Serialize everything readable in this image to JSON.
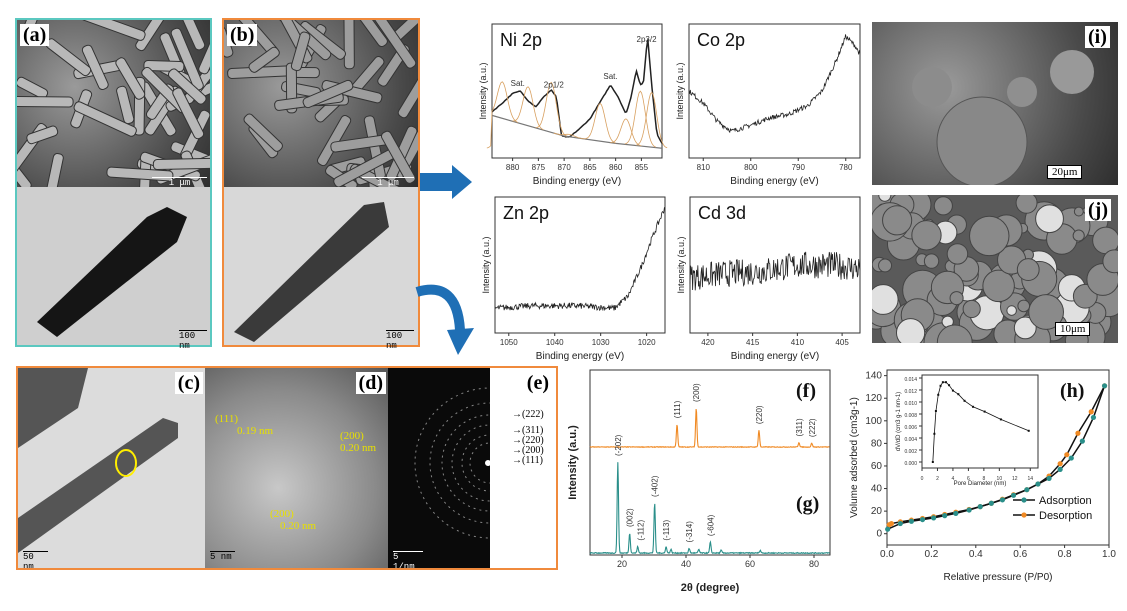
{
  "panels": {
    "a": {
      "label": "(a)",
      "scale_top": "1 μm",
      "scale_bottom": "100 nm",
      "border_color": "#5bc8c0"
    },
    "b": {
      "label": "(b)",
      "scale_top": "1 μm",
      "scale_bottom": "100 nm",
      "border_color": "#f08a3c"
    },
    "c": {
      "label": "(c)",
      "scale": "50 nm"
    },
    "d": {
      "label": "(d)",
      "scale": "5 nm",
      "annotations": [
        {
          "plane": "(111)",
          "spacing": "0.19 nm"
        },
        {
          "plane": "(200)",
          "spacing": "0.20 nm"
        },
        {
          "plane": "(200)",
          "spacing": "0.20 nm"
        }
      ]
    },
    "e": {
      "label": "(e)",
      "scale": "5 1/nm",
      "rings": [
        "(222)",
        "(311)",
        "(220)",
        "(200)",
        "(111)"
      ]
    },
    "i": {
      "label": "(i)",
      "scale": "20μm"
    },
    "j": {
      "label": "(j)",
      "scale": "10μm"
    },
    "cde_border_color": "#f08a3c",
    "arrow_color": "#1f6fb5"
  },
  "chart_data": [
    {
      "id": "ni2p",
      "type": "line",
      "title": "Ni 2p",
      "xlabel": "Binding energy (eV)",
      "ylabel": "Intensity (a.u.)",
      "xlim": [
        884,
        851
      ],
      "ylim": [
        0,
        1.1
      ],
      "xticks": [
        880,
        875,
        870,
        865,
        860,
        855
      ],
      "annotations": [
        {
          "text": "Sat.",
          "x": 879
        },
        {
          "text": "2p1/2",
          "x": 872
        },
        {
          "text": "Sat.",
          "x": 861
        },
        {
          "text": "2p3/2",
          "x": 854
        }
      ],
      "x": [
        884,
        882,
        880,
        878.5,
        877,
        875.5,
        874,
        872.5,
        871.5,
        870.5,
        869,
        867,
        865,
        863,
        861,
        859.5,
        858,
        857,
        856,
        855.2,
        854.6,
        853.8,
        853,
        852,
        851
      ],
      "y": [
        0.38,
        0.45,
        0.53,
        0.55,
        0.47,
        0.42,
        0.5,
        0.56,
        0.5,
        0.18,
        0.17,
        0.24,
        0.32,
        0.46,
        0.6,
        0.5,
        0.36,
        0.5,
        0.72,
        0.6,
        0.62,
        1.0,
        0.6,
        0.2,
        0.12
      ],
      "background": {
        "x": [
          884,
          870,
          860,
          851
        ],
        "y": [
          0.35,
          0.18,
          0.12,
          0.08
        ]
      }
    },
    {
      "id": "co2p",
      "type": "line",
      "title": "Co 2p",
      "xlabel": "Binding energy (eV)",
      "ylabel": "Intensity (a.u.)",
      "xlim": [
        813,
        777
      ],
      "ylim": [
        0,
        1.1
      ],
      "xticks": [
        810,
        800,
        790,
        780
      ],
      "x": [
        813,
        810,
        807,
        804,
        800,
        796,
        792,
        788,
        785,
        782,
        780,
        778,
        777
      ],
      "y": [
        0.55,
        0.45,
        0.3,
        0.22,
        0.27,
        0.33,
        0.36,
        0.43,
        0.55,
        0.8,
        1.0,
        0.92,
        0.85
      ]
    },
    {
      "id": "zn2p",
      "type": "line",
      "title": "Zn 2p",
      "xlabel": "Binding energy (eV)",
      "ylabel": "Intensity (a.u.)",
      "xlim": [
        1053,
        1016
      ],
      "ylim": [
        0,
        1.1
      ],
      "xticks": [
        1050,
        1040,
        1030,
        1020
      ],
      "x": [
        1053,
        1045,
        1035,
        1027,
        1024,
        1021,
        1019,
        1016
      ],
      "y": [
        0.2,
        0.22,
        0.22,
        0.2,
        0.3,
        0.55,
        0.75,
        1.02
      ]
    },
    {
      "id": "cd3d",
      "type": "line",
      "title": "Cd 3d",
      "xlabel": "Binding energy (eV)",
      "ylabel": "Intensity (a.u.)",
      "xlim": [
        422,
        403
      ],
      "ylim": [
        0,
        1.1
      ],
      "xticks": [
        420,
        415,
        410,
        405
      ],
      "x": [
        422,
        418,
        414,
        410,
        406,
        403
      ],
      "y": [
        0.45,
        0.48,
        0.5,
        0.55,
        0.55,
        0.52
      ]
    },
    {
      "id": "xrd",
      "type": "line",
      "xlabel": "2θ (degree)",
      "ylabel": "Intensity (a.u.)",
      "xlim": [
        10,
        85
      ],
      "xticks": [
        20,
        40,
        60,
        80
      ],
      "series": [
        {
          "label": "(f)",
          "color": "#f08a24",
          "peaks": [
            {
              "x": 37.2,
              "y": 0.35,
              "hkl": "(111)"
            },
            {
              "x": 43.2,
              "y": 0.6,
              "hkl": "(200)"
            },
            {
              "x": 62.8,
              "y": 0.26,
              "hkl": "(220)"
            },
            {
              "x": 75.3,
              "y": 0.07,
              "hkl": "(311)"
            },
            {
              "x": 79.3,
              "y": 0.06,
              "hkl": "(222)"
            }
          ]
        },
        {
          "label": "(g)",
          "color": "#2a8f8a",
          "peaks": [
            {
              "x": 18.7,
              "y": 1.0,
              "hkl": "(-202)"
            },
            {
              "x": 22.4,
              "y": 0.22,
              "hkl": "(002)"
            },
            {
              "x": 24.9,
              "y": 0.07,
              "hkl": "(-112)"
            },
            {
              "x": 30.2,
              "y": 0.55,
              "hkl": "(-402)"
            },
            {
              "x": 33.8,
              "y": 0.07,
              "hkl": "(-113)"
            },
            {
              "x": 35.3,
              "y": 0.04,
              "hkl": ""
            },
            {
              "x": 41.0,
              "y": 0.05,
              "hkl": "(-314)"
            },
            {
              "x": 44,
              "y": 0.04,
              "hkl": ""
            },
            {
              "x": 47.6,
              "y": 0.12,
              "hkl": "(-604)"
            },
            {
              "x": 51,
              "y": 0.03,
              "hkl": ""
            },
            {
              "x": 63.2,
              "y": 0.03,
              "hkl": ""
            }
          ]
        }
      ]
    },
    {
      "id": "bet",
      "type": "line",
      "label": "(h)",
      "xlabel": "Relative pressure (P/P0)",
      "ylabel": "Volume adsorbed (cm3g-1)",
      "xlim": [
        0,
        1.0
      ],
      "ylim": [
        -10,
        145
      ],
      "xticks": [
        0.0,
        0.2,
        0.4,
        0.6,
        0.8,
        1.0
      ],
      "yticks": [
        0,
        20,
        40,
        60,
        80,
        100,
        120,
        140
      ],
      "legend": "bottom-right",
      "series": [
        {
          "name": "Adsorption",
          "color": "#2a8f8a",
          "x": [
            0.003,
            0.06,
            0.11,
            0.16,
            0.21,
            0.26,
            0.31,
            0.37,
            0.42,
            0.47,
            0.52,
            0.57,
            0.63,
            0.68,
            0.73,
            0.78,
            0.83,
            0.88,
            0.93,
            0.98
          ],
          "y": [
            4,
            9,
            11,
            12.5,
            14,
            16,
            18,
            21,
            24,
            27,
            30,
            34,
            39,
            44,
            49,
            57,
            67,
            82,
            103,
            131
          ]
        },
        {
          "name": "Desorption",
          "color": "#f08a24",
          "x": [
            0.01,
            0.02,
            0.06,
            0.11,
            0.16,
            0.21,
            0.26,
            0.31,
            0.37,
            0.42,
            0.47,
            0.52,
            0.57,
            0.63,
            0.68,
            0.73,
            0.78,
            0.81,
            0.86,
            0.92,
            0.98
          ],
          "y": [
            8,
            9,
            10.5,
            12,
            13.5,
            15,
            17,
            19,
            21.5,
            24,
            27,
            30.5,
            34.5,
            39,
            44,
            51,
            62,
            70,
            89,
            108,
            131
          ]
        }
      ],
      "inset": {
        "xlabel": "Pore Diameter (nm)",
        "ylabel": "dV/dD (cm3 g-1 nm-1)",
        "xlim": [
          0,
          15
        ],
        "ylim": [
          -0.001,
          0.0145
        ],
        "xticks": [
          0,
          2,
          4,
          6,
          8,
          10,
          12,
          14
        ],
        "yticks": [
          0.0,
          0.002,
          0.004,
          0.006,
          0.008,
          0.01,
          0.012,
          0.014
        ],
        "x": [
          1.4,
          1.6,
          1.8,
          2.1,
          2.4,
          2.7,
          3.1,
          3.5,
          4.0,
          4.7,
          5.5,
          6.6,
          8.1,
          10.2,
          13.8
        ],
        "y": [
          0,
          0.0047,
          0.0085,
          0.0112,
          0.0127,
          0.0133,
          0.0133,
          0.0128,
          0.0119,
          0.0113,
          0.0102,
          0.0092,
          0.0084,
          0.0071,
          0.0052
        ]
      }
    }
  ]
}
